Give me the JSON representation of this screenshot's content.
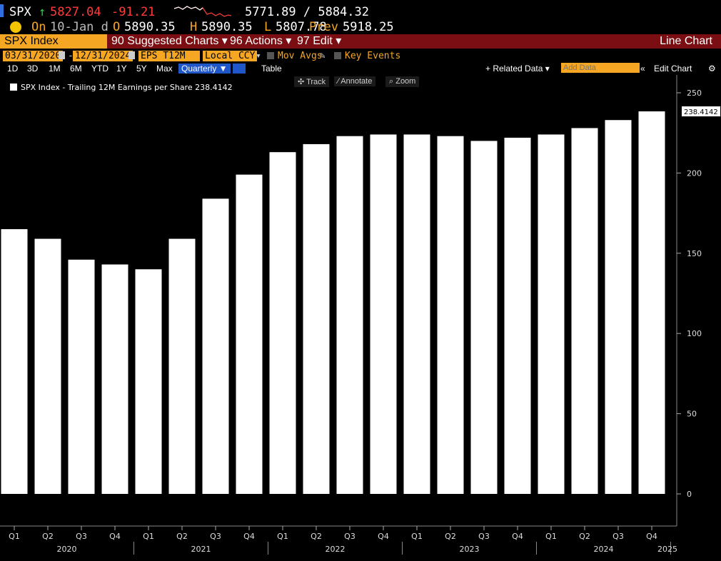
{
  "ticker": {
    "symbol": "SPX",
    "arrow": "↑",
    "last": "5827.04",
    "change": "-91.21",
    "range": "5771.89 / 5884.32",
    "on_label": "On",
    "date": "10-Jan d",
    "open_label": "O",
    "open": "5890.35",
    "high_label": "H",
    "high": "5890.35",
    "low_label": "L",
    "low": "5807.78",
    "prev_label": "Prev",
    "prev": "5918.25"
  },
  "menubar": {
    "security": "SPX Index",
    "suggested": "90 Suggested Charts ▾",
    "actions": "96 Actions ▾",
    "edit": "97 Edit ▾",
    "chart_type": "Line Chart"
  },
  "controls": {
    "start_date": "03/31/2020",
    "end_date": "12/31/2024",
    "field": "EPS T12M",
    "currency": "Local CCY",
    "mov_avgs": "Mov Avgs",
    "key_events": "Key Events"
  },
  "toolbar": {
    "periods": [
      "1D",
      "3D",
      "1M",
      "6M",
      "YTD",
      "1Y",
      "5Y",
      "Max"
    ],
    "frequency": "Quarterly ▼",
    "table": "Table",
    "related": "+ Related Data ▾",
    "add_data_placeholder": "Add Data",
    "edit_chart": "Edit Chart"
  },
  "tools": {
    "track": "Track",
    "annotate": "Annotate",
    "zoom": "Zoom"
  },
  "chart_data": {
    "type": "bar",
    "title": "",
    "legend": "SPX Index - Trailing 12M Earnings per Share 238.4142",
    "last_value_label": "238.4142",
    "categories": [
      "Q1",
      "Q2",
      "Q3",
      "Q4",
      "Q1",
      "Q2",
      "Q3",
      "Q4",
      "Q1",
      "Q2",
      "Q3",
      "Q4",
      "Q1",
      "Q2",
      "Q3",
      "Q4",
      "Q1",
      "Q2",
      "Q3",
      "Q4"
    ],
    "years": [
      {
        "label": "2020",
        "start": 0,
        "end": 4
      },
      {
        "label": "2021",
        "start": 4,
        "end": 8
      },
      {
        "label": "2022",
        "start": 8,
        "end": 12
      },
      {
        "label": "2023",
        "start": 12,
        "end": 16
      },
      {
        "label": "2024",
        "start": 16,
        "end": 20
      },
      {
        "label": "2025",
        "start": 20,
        "end": 21
      }
    ],
    "values": [
      165,
      159,
      146,
      143,
      140,
      159,
      184,
      199,
      213,
      218,
      223,
      224,
      224,
      223,
      220,
      222,
      224,
      228,
      233,
      238.4142
    ],
    "yticks": [
      0,
      50,
      100,
      150,
      200,
      250
    ],
    "ylim": [
      -25,
      260
    ],
    "xlabel": "",
    "ylabel": ""
  }
}
